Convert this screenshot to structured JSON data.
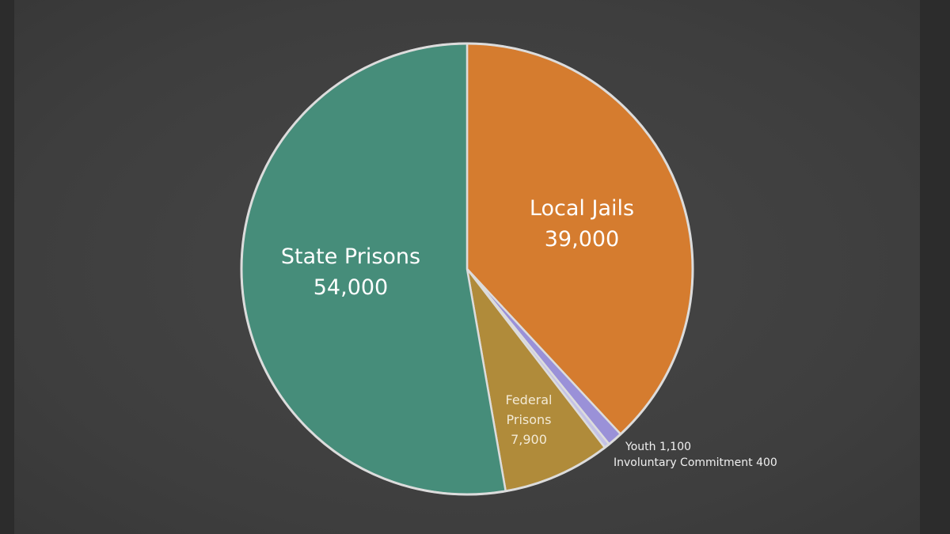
{
  "chart_data": {
    "type": "pie",
    "categories": [
      "Local Jails",
      "Youth",
      "Involuntary Commitment",
      "Federal Prisons",
      "State Prisons"
    ],
    "values": [
      39000,
      1100,
      400,
      7900,
      54000
    ],
    "value_labels": [
      "39,000",
      "1,100",
      "400",
      "7,900",
      "54,000"
    ],
    "colors": [
      "#d57c2f",
      "#9a91d8",
      "#c4c2e6",
      "#b08b3a",
      "#468d7a"
    ]
  }
}
